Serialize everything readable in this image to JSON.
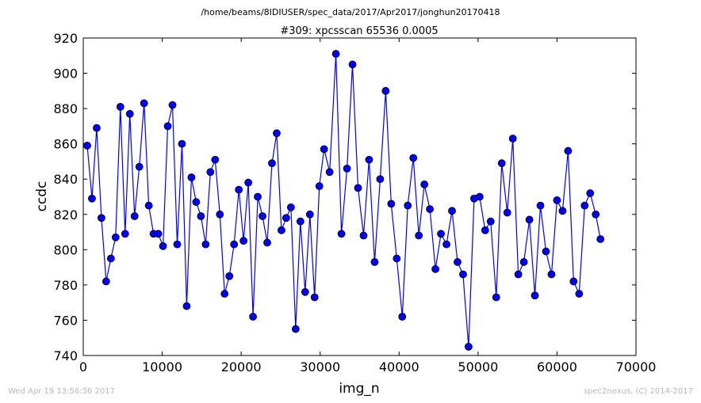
{
  "chart_data": {
    "type": "line",
    "suptitle": "/home/beams/8IDIUSER/spec_data/2017/Apr2017/jonghun20170418",
    "title": "#309: xpcsscan 65536 0.0005",
    "xlabel": "img_n",
    "ylabel": "ccdc",
    "xlim": [
      0,
      70000
    ],
    "ylim": [
      740,
      920
    ],
    "xticks": [
      0,
      10000,
      20000,
      30000,
      40000,
      50000,
      60000,
      70000
    ],
    "yticks": [
      740,
      760,
      780,
      800,
      820,
      840,
      860,
      880,
      900,
      920
    ],
    "grid": false,
    "series_color": "#0000ff",
    "marker": "circle",
    "x": [
      500,
      1100,
      1700,
      2300,
      2900,
      3500,
      4100,
      4700,
      5300,
      5900,
      6500,
      7100,
      7700,
      8300,
      8900,
      9500,
      10100,
      10700,
      11300,
      11900,
      12500,
      13100,
      13700,
      14300,
      14900,
      15500,
      16100,
      16700,
      17300,
      17900,
      18500,
      19100,
      19700,
      20300,
      20900,
      21500,
      22100,
      22700,
      23300,
      23900,
      24500,
      25100,
      25700,
      26300,
      26900,
      27500,
      28100,
      28700,
      29300,
      29900,
      30500,
      31200,
      32000,
      32700,
      33400,
      34100,
      34800,
      35500,
      36200,
      36900,
      37600,
      38300,
      39000,
      39700,
      40400,
      41100,
      41800,
      42500,
      43200,
      43900,
      44600,
      45300,
      46000,
      46700,
      47400,
      48100,
      48800,
      49500,
      50200,
      50900,
      51600,
      52300,
      53000,
      53700,
      54400,
      55100,
      55800,
      56500,
      57200,
      57900,
      58600,
      59300,
      60000,
      60700,
      61400,
      62100,
      62800,
      63500,
      64200,
      64900,
      65500
    ],
    "y": [
      859,
      829,
      869,
      818,
      782,
      795,
      807,
      881,
      809,
      877,
      819,
      847,
      883,
      825,
      809,
      809,
      802,
      870,
      882,
      803,
      860,
      768,
      841,
      827,
      819,
      803,
      844,
      851,
      820,
      775,
      785,
      803,
      834,
      805,
      838,
      762,
      830,
      819,
      804,
      849,
      866,
      811,
      818,
      824,
      755,
      816,
      776,
      820,
      773,
      836,
      857,
      844,
      911,
      809,
      846,
      905,
      835,
      808,
      851,
      793,
      840,
      890,
      826,
      795,
      762,
      825,
      852,
      808,
      837,
      823,
      789,
      809,
      803,
      822,
      793,
      786,
      745,
      829,
      830,
      811,
      816,
      773,
      849,
      821,
      863,
      786,
      793,
      817,
      774,
      825,
      799,
      786,
      828,
      822,
      856,
      782,
      775,
      825,
      832,
      820,
      806
    ]
  },
  "footer": {
    "timestamp": "Wed Apr 19 13:56:36 2017",
    "credit": "spec2nexus, (C) 2014-2017"
  }
}
